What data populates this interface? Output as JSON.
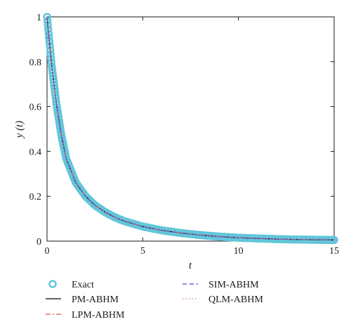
{
  "chart_data": {
    "type": "line",
    "xlabel": "t",
    "ylabel": "y (t)",
    "xlim": [
      0,
      15
    ],
    "ylim": [
      0,
      1
    ],
    "xticks": [
      "0",
      "5",
      "10",
      "15"
    ],
    "yticks": [
      "0",
      "0.2",
      "0.4",
      "0.6",
      "0.8",
      "1"
    ],
    "grid": false,
    "legend_position": "bottom",
    "x": [
      0,
      0.25,
      0.5,
      0.75,
      1,
      1.5,
      2,
      2.5,
      3,
      3.5,
      4,
      5,
      6,
      7,
      8,
      9,
      10,
      11,
      12,
      13,
      14,
      15
    ],
    "series": [
      {
        "name": "Exact",
        "style": "circles",
        "color": "#62c6d9",
        "values": [
          1.0,
          0.779,
          0.607,
          0.472,
          0.368,
          0.261,
          0.201,
          0.16,
          0.131,
          0.108,
          0.09,
          0.065,
          0.048,
          0.036,
          0.027,
          0.02,
          0.015,
          0.012,
          0.009,
          0.007,
          0.006,
          0.005
        ]
      },
      {
        "name": "PM-ABHM",
        "style": "solid",
        "color": "#000000",
        "values": [
          1.0,
          0.779,
          0.607,
          0.472,
          0.368,
          0.261,
          0.201,
          0.16,
          0.131,
          0.108,
          0.09,
          0.065,
          0.048,
          0.036,
          0.027,
          0.02,
          0.015,
          0.012,
          0.009,
          0.007,
          0.006,
          0.005
        ]
      },
      {
        "name": "LPM-ABHM",
        "style": "dashdot",
        "color": "#e8543a",
        "values": [
          1.0,
          0.779,
          0.607,
          0.472,
          0.368,
          0.261,
          0.201,
          0.16,
          0.131,
          0.108,
          0.09,
          0.065,
          0.048,
          0.036,
          0.027,
          0.02,
          0.015,
          0.012,
          0.009,
          0.007,
          0.006,
          0.005
        ]
      },
      {
        "name": "SIM-ABHM",
        "style": "dashed",
        "color": "#3b4cc0",
        "values": [
          1.0,
          0.779,
          0.607,
          0.472,
          0.368,
          0.261,
          0.201,
          0.16,
          0.131,
          0.108,
          0.09,
          0.065,
          0.048,
          0.036,
          0.027,
          0.02,
          0.015,
          0.012,
          0.009,
          0.007,
          0.006,
          0.005
        ]
      },
      {
        "name": "QLM-ABHM",
        "style": "dotted",
        "color": "#d26fc4",
        "values": [
          1.0,
          0.779,
          0.607,
          0.472,
          0.368,
          0.261,
          0.201,
          0.16,
          0.131,
          0.108,
          0.09,
          0.065,
          0.048,
          0.036,
          0.027,
          0.02,
          0.015,
          0.012,
          0.009,
          0.007,
          0.006,
          0.005
        ]
      }
    ]
  }
}
